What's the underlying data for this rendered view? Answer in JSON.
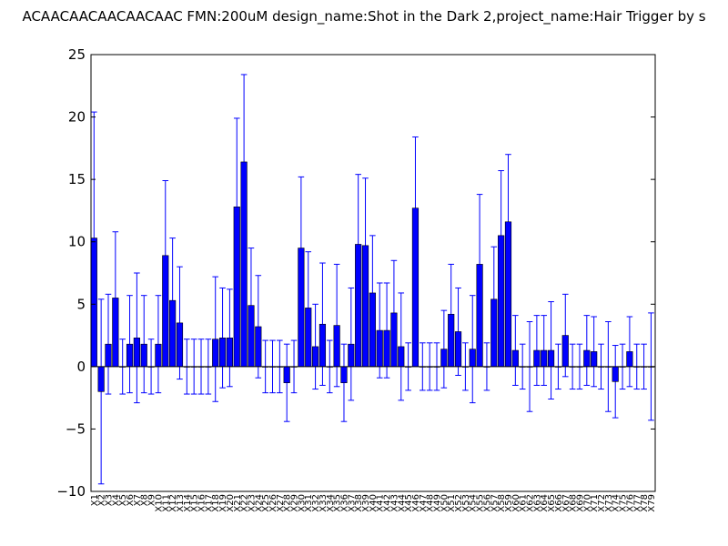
{
  "chart_data": {
    "type": "bar",
    "title": "ACAACAACAACAACAAC  FMN:200uM  design_name:Shot in the Dark 2,project_name:Hair Trigger by s",
    "xlabel": "",
    "ylabel": "",
    "ylim": [
      -10,
      25
    ],
    "yticks": [
      -10,
      -5,
      0,
      5,
      10,
      15,
      20,
      25
    ],
    "grid": false,
    "legend": "none",
    "colors": {
      "bar": "#0000ff",
      "bar_edge": "#000000",
      "errorbar": "#0000ff",
      "axis": "#000000",
      "background": "#ffffff"
    },
    "categories": [
      "X1",
      "X2",
      "X3",
      "X4",
      "X5",
      "X6",
      "X7",
      "X8",
      "X9",
      "X10",
      "X11",
      "X12",
      "X13",
      "X14",
      "X15",
      "X16",
      "X17",
      "X18",
      "X19",
      "X20",
      "X21",
      "X22",
      "X23",
      "X24",
      "X25",
      "X26",
      "X27",
      "X28",
      "X29",
      "X30",
      "X31",
      "X32",
      "X33",
      "X34",
      "X35",
      "X36",
      "X37",
      "X38",
      "X39",
      "X40",
      "X41",
      "X42",
      "X43",
      "X44",
      "X45",
      "X46",
      "X47",
      "X48",
      "X49",
      "X50",
      "X51",
      "X52",
      "X53",
      "X54",
      "X55",
      "X56",
      "X57",
      "X58",
      "X59",
      "X60",
      "X61",
      "X62",
      "X63",
      "X64",
      "X65",
      "X66",
      "X67",
      "X68",
      "X69",
      "X70",
      "X71",
      "X72",
      "X73",
      "X74",
      "X75",
      "X76",
      "X77",
      "X78",
      "X79"
    ],
    "values": [
      10.3,
      -2.0,
      1.8,
      5.5,
      0.0,
      1.8,
      2.3,
      1.8,
      0.0,
      1.8,
      8.9,
      5.3,
      3.5,
      0.0,
      0.0,
      0.0,
      0.0,
      2.2,
      2.3,
      2.3,
      12.8,
      16.4,
      4.9,
      3.2,
      0.0,
      0.0,
      0.0,
      -1.3,
      0.0,
      9.5,
      4.7,
      1.6,
      3.4,
      0.0,
      3.3,
      -1.3,
      1.8,
      9.8,
      9.7,
      5.9,
      2.9,
      2.9,
      4.3,
      1.6,
      0.0,
      12.7,
      0.0,
      0.0,
      0.0,
      1.4,
      4.2,
      2.8,
      0.0,
      1.4,
      8.2,
      0.0,
      5.4,
      10.5,
      11.6,
      1.3,
      0.0,
      0.0,
      1.3,
      1.3,
      1.3,
      0.0,
      2.5,
      0.0,
      0.0,
      1.3,
      1.2,
      0.0,
      0.0,
      -1.2,
      0.0,
      1.2,
      0.0,
      0.0,
      0.0
    ],
    "errors": [
      10.1,
      7.4,
      4.0,
      5.3,
      2.2,
      3.9,
      5.2,
      3.9,
      2.2,
      3.9,
      6.0,
      5.0,
      4.5,
      2.2,
      2.2,
      2.2,
      2.2,
      5.0,
      4.0,
      3.9,
      7.1,
      7.0,
      4.6,
      4.1,
      2.1,
      2.1,
      2.1,
      3.1,
      2.1,
      5.7,
      4.5,
      3.4,
      4.9,
      2.1,
      4.9,
      3.1,
      4.5,
      5.6,
      5.4,
      4.6,
      3.8,
      3.8,
      4.2,
      4.3,
      1.9,
      5.7,
      1.9,
      1.9,
      1.9,
      3.1,
      4.0,
      3.5,
      1.9,
      4.3,
      5.6,
      1.9,
      4.2,
      5.2,
      5.4,
      2.8,
      1.8,
      3.6,
      2.8,
      2.8,
      3.9,
      1.8,
      3.3,
      1.8,
      1.8,
      2.8,
      2.8,
      1.8,
      3.6,
      2.9,
      1.8,
      2.8,
      1.8,
      1.8,
      4.3
    ]
  }
}
